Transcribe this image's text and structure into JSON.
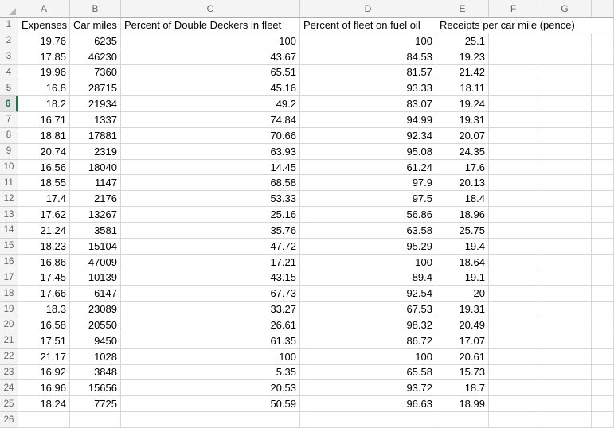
{
  "colors": {
    "accent_green": "#217346",
    "gridline": "#d6d6d6",
    "header_bg": "#f4f4f4",
    "header_bg_active": "#e4e4e4",
    "header_text": "#666666",
    "cell_text": "#000000"
  },
  "sheet": {
    "column_letters": [
      "A",
      "B",
      "C",
      "D",
      "E",
      "F",
      "G"
    ],
    "row_numbers": [
      1,
      2,
      3,
      4,
      5,
      6,
      7,
      8,
      9,
      10,
      11,
      12,
      13,
      14,
      15,
      16,
      17,
      18,
      19,
      20,
      21,
      22,
      23,
      24,
      25,
      26
    ],
    "active_row": 6,
    "header_row": [
      "Expenses",
      "Car miles",
      "Percent of Double Deckers in fleet",
      "Percent of fleet on fuel oil",
      "Receipts per car mile (pence)"
    ],
    "data_rows": [
      [
        "19.76",
        "6235",
        "100",
        "100",
        "25.1"
      ],
      [
        "17.85",
        "46230",
        "43.67",
        "84.53",
        "19.23"
      ],
      [
        "19.96",
        "7360",
        "65.51",
        "81.57",
        "21.42"
      ],
      [
        "16.8",
        "28715",
        "45.16",
        "93.33",
        "18.11"
      ],
      [
        "18.2",
        "21934",
        "49.2",
        "83.07",
        "19.24"
      ],
      [
        "16.71",
        "1337",
        "74.84",
        "94.99",
        "19.31"
      ],
      [
        "18.81",
        "17881",
        "70.66",
        "92.34",
        "20.07"
      ],
      [
        "20.74",
        "2319",
        "63.93",
        "95.08",
        "24.35"
      ],
      [
        "16.56",
        "18040",
        "14.45",
        "61.24",
        "17.6"
      ],
      [
        "18.55",
        "1147",
        "68.58",
        "97.9",
        "20.13"
      ],
      [
        "17.4",
        "2176",
        "53.33",
        "97.5",
        "18.4"
      ],
      [
        "17.62",
        "13267",
        "25.16",
        "56.86",
        "18.96"
      ],
      [
        "21.24",
        "3581",
        "35.76",
        "63.58",
        "25.75"
      ],
      [
        "18.23",
        "15104",
        "47.72",
        "95.29",
        "19.4"
      ],
      [
        "16.86",
        "47009",
        "17.21",
        "100",
        "18.64"
      ],
      [
        "17.45",
        "10139",
        "43.15",
        "89.4",
        "19.1"
      ],
      [
        "17.66",
        "6147",
        "67.73",
        "92.54",
        "20"
      ],
      [
        "18.3",
        "23089",
        "33.27",
        "67.53",
        "19.31"
      ],
      [
        "16.58",
        "20550",
        "26.61",
        "98.32",
        "20.49"
      ],
      [
        "17.51",
        "9450",
        "61.35",
        "86.72",
        "17.07"
      ],
      [
        "21.17",
        "1028",
        "100",
        "100",
        "20.61"
      ],
      [
        "16.92",
        "3848",
        "5.35",
        "65.58",
        "15.73"
      ],
      [
        "16.96",
        "15656",
        "20.53",
        "93.72",
        "18.7"
      ],
      [
        "18.24",
        "7725",
        "50.59",
        "96.63",
        "18.99"
      ]
    ]
  }
}
